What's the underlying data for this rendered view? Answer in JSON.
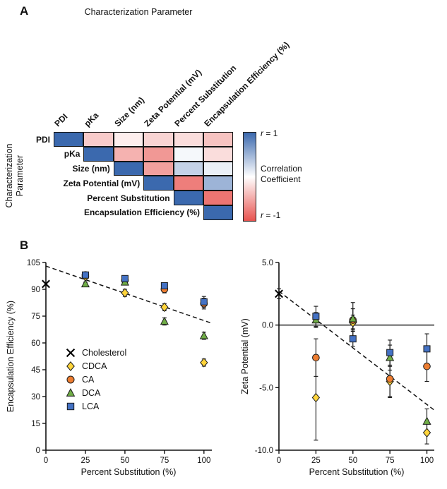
{
  "panelA": {
    "label": "A",
    "title": "Characterization Parameter",
    "ylabel_line1": "Characterization",
    "ylabel_line2": "Parameter",
    "colorbar": {
      "r_var": "r",
      "max_suffix": " = 1",
      "min_suffix": " = -1",
      "title_line1": "Correlation",
      "title_line2": "Coefficient"
    }
  },
  "panelB": {
    "label": "B",
    "left_plot": {
      "ylabel": "Encapsulation Efficiency (%)",
      "xlabel": "Percent Substitution (%)"
    },
    "right_plot": {
      "ylabel": "Zeta Potential (mV)",
      "xlabel": "Percent Substitution (%)"
    }
  },
  "colors": {
    "heatmap_blue": "#3b69ae",
    "heatmap_red": "#e8534f",
    "cdca_yellow": "#FFD43B",
    "ca_orange": "#ED7D31",
    "dca_green": "#70AD47",
    "lca_blue": "#4472C4",
    "cholesterol_black": "#000000"
  },
  "chart_data": [
    {
      "type": "heatmap",
      "title": "Characterization Parameter",
      "axis_label": "Characterization Parameter",
      "triangular": "upper",
      "labels": [
        "PDI",
        "pKa",
        "Size (nm)",
        "Zeta Potential (mV)",
        "Percent Substitution",
        "Encapsulation Efficiency (%)"
      ],
      "matrix": [
        [
          1.0,
          -0.3,
          -0.1,
          -0.25,
          -0.2,
          -0.35
        ],
        [
          null,
          1.0,
          -0.45,
          -0.6,
          0.05,
          -0.2
        ],
        [
          null,
          null,
          1.0,
          -0.55,
          0.3,
          0.1
        ],
        [
          null,
          null,
          null,
          1.0,
          -0.75,
          0.5
        ],
        [
          null,
          null,
          null,
          null,
          1.0,
          -0.8
        ],
        [
          null,
          null,
          null,
          null,
          null,
          1.0
        ]
      ],
      "colorscale": {
        "positive": "#3b69ae",
        "zero": "#ffffff",
        "negative": "#e8534f",
        "range": [
          -1,
          1
        ]
      },
      "colorbar_labels": {
        "max": "r = 1",
        "title": "Correlation Coefficient",
        "min": "r = -1"
      }
    },
    {
      "type": "scatter",
      "xlabel": "Percent Substitution (%)",
      "ylabel": "Encapsulation Efficiency (%)",
      "xlim": [
        0,
        105
      ],
      "ylim": [
        0,
        105
      ],
      "xticks": [
        0,
        25,
        50,
        75,
        100
      ],
      "yticks": [
        0,
        15,
        30,
        45,
        60,
        75,
        90,
        105
      ],
      "grid": false,
      "legend_position": "lower-left",
      "trendline": {
        "style": "dashed",
        "x": [
          0,
          105
        ],
        "y": [
          103,
          71
        ]
      },
      "series": [
        {
          "name": "Cholesterol",
          "marker": "x",
          "color": "#000000",
          "points": [
            {
              "x": 0,
              "y": 93,
              "err": 0
            }
          ]
        },
        {
          "name": "CDCA",
          "marker": "diamond",
          "color": "#FFD43B",
          "points": [
            {
              "x": 25,
              "y": 97,
              "err": 1
            },
            {
              "x": 50,
              "y": 88,
              "err": 2
            },
            {
              "x": 75,
              "y": 80,
              "err": 2
            },
            {
              "x": 100,
              "y": 49,
              "err": 2
            }
          ]
        },
        {
          "name": "CA",
          "marker": "circle",
          "color": "#ED7D31",
          "points": [
            {
              "x": 25,
              "y": 98,
              "err": 1
            },
            {
              "x": 50,
              "y": 95,
              "err": 2
            },
            {
              "x": 75,
              "y": 90,
              "err": 2
            },
            {
              "x": 100,
              "y": 82,
              "err": 3
            }
          ]
        },
        {
          "name": "DCA",
          "marker": "triangle",
          "color": "#70AD47",
          "points": [
            {
              "x": 25,
              "y": 93,
              "err": 1
            },
            {
              "x": 50,
              "y": 94,
              "err": 1
            },
            {
              "x": 75,
              "y": 72,
              "err": 2
            },
            {
              "x": 100,
              "y": 64,
              "err": 2
            }
          ]
        },
        {
          "name": "LCA",
          "marker": "square",
          "color": "#4472C4",
          "points": [
            {
              "x": 25,
              "y": 98,
              "err": 1
            },
            {
              "x": 50,
              "y": 96,
              "err": 1
            },
            {
              "x": 75,
              "y": 92,
              "err": 1
            },
            {
              "x": 100,
              "y": 83,
              "err": 3
            }
          ]
        }
      ]
    },
    {
      "type": "scatter",
      "xlabel": "Percent Substitution (%)",
      "ylabel": "Zeta Potential (mV)",
      "xlim": [
        0,
        105
      ],
      "ylim": [
        -10,
        5
      ],
      "xticks": [
        0,
        25,
        50,
        75,
        100
      ],
      "yticks": [
        5,
        0,
        -5,
        -10
      ],
      "ytick_labels": [
        "5.0",
        "0.0",
        "-5.0",
        "-10.0"
      ],
      "zero_line": true,
      "grid": false,
      "trendline": {
        "style": "dashed",
        "x": [
          0,
          105
        ],
        "y": [
          2.7,
          -6.8
        ]
      },
      "series": [
        {
          "name": "Cholesterol",
          "marker": "x",
          "color": "#000000",
          "points": [
            {
              "x": 0,
              "y": 2.5,
              "err": 0.4
            }
          ]
        },
        {
          "name": "CDCA",
          "marker": "diamond",
          "color": "#FFD43B",
          "points": [
            {
              "x": 25,
              "y": -5.8,
              "err": 3.4
            },
            {
              "x": 50,
              "y": 0.2,
              "err": 0.6
            },
            {
              "x": 75,
              "y": -4.5,
              "err": 1.2
            },
            {
              "x": 100,
              "y": -8.6,
              "err": 0.9
            }
          ]
        },
        {
          "name": "CA",
          "marker": "circle",
          "color": "#ED7D31",
          "points": [
            {
              "x": 25,
              "y": -2.6,
              "err": 1.5
            },
            {
              "x": 50,
              "y": 0.4,
              "err": 1.4
            },
            {
              "x": 75,
              "y": -4.3,
              "err": 1.5
            },
            {
              "x": 100,
              "y": -3.3,
              "err": 1.2
            }
          ]
        },
        {
          "name": "DCA",
          "marker": "triangle",
          "color": "#70AD47",
          "points": [
            {
              "x": 25,
              "y": 0.4,
              "err": 0.6
            },
            {
              "x": 50,
              "y": 0.5,
              "err": 0.8
            },
            {
              "x": 75,
              "y": -2.6,
              "err": 1.0
            },
            {
              "x": 100,
              "y": -7.7,
              "err": 1.0
            }
          ]
        },
        {
          "name": "LCA",
          "marker": "square",
          "color": "#4472C4",
          "points": [
            {
              "x": 25,
              "y": 0.7,
              "err": 0.8
            },
            {
              "x": 50,
              "y": -1.1,
              "err": 0.6
            },
            {
              "x": 75,
              "y": -2.2,
              "err": 1.0
            },
            {
              "x": 100,
              "y": -1.9,
              "err": 1.2
            }
          ]
        }
      ]
    }
  ]
}
